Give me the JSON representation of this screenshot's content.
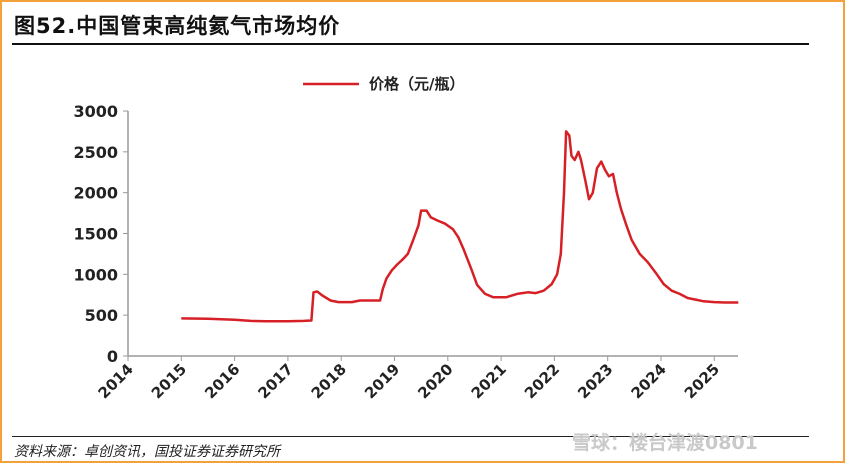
{
  "title": "图52.中国管束高纯氦气市场均价",
  "source": "资料来源：卓创资讯，国投证券证券研究所",
  "watermark": "雪球：楼台津渡0801",
  "colors": {
    "line": "#d62026",
    "frame": "#f2a13b",
    "axis": "#9a9a9a"
  },
  "chart_data": {
    "type": "line",
    "title": "图52.中国管束高纯氦气市场均价",
    "xlabel": "",
    "ylabel": "",
    "x_ticks": [
      "2014",
      "2015",
      "2016",
      "2017",
      "2018",
      "2019",
      "2020",
      "2021",
      "2022",
      "2023",
      "2024",
      "2025"
    ],
    "y_ticks": [
      "0",
      "500",
      "1000",
      "1500",
      "2000",
      "2500",
      "3000"
    ],
    "xlim": [
      2014,
      2025.45
    ],
    "ylim": [
      0,
      3000
    ],
    "legend": {
      "position": "top-center"
    },
    "grid": false,
    "series": [
      {
        "name": "价格（元/瓶）",
        "points": [
          [
            2015.0,
            460
          ],
          [
            2015.5,
            455
          ],
          [
            2016.0,
            445
          ],
          [
            2016.3,
            430
          ],
          [
            2016.6,
            425
          ],
          [
            2017.0,
            425
          ],
          [
            2017.3,
            430
          ],
          [
            2017.44,
            435
          ],
          [
            2017.48,
            780
          ],
          [
            2017.55,
            790
          ],
          [
            2017.65,
            740
          ],
          [
            2017.8,
            680
          ],
          [
            2017.95,
            660
          ],
          [
            2018.2,
            660
          ],
          [
            2018.35,
            680
          ],
          [
            2018.55,
            680
          ],
          [
            2018.73,
            680
          ],
          [
            2018.78,
            820
          ],
          [
            2018.85,
            950
          ],
          [
            2018.95,
            1050
          ],
          [
            2019.05,
            1120
          ],
          [
            2019.15,
            1180
          ],
          [
            2019.25,
            1250
          ],
          [
            2019.35,
            1420
          ],
          [
            2019.45,
            1600
          ],
          [
            2019.5,
            1780
          ],
          [
            2019.6,
            1780
          ],
          [
            2019.68,
            1700
          ],
          [
            2019.8,
            1660
          ],
          [
            2019.95,
            1620
          ],
          [
            2020.1,
            1550
          ],
          [
            2020.2,
            1450
          ],
          [
            2020.3,
            1300
          ],
          [
            2020.45,
            1050
          ],
          [
            2020.55,
            870
          ],
          [
            2020.7,
            760
          ],
          [
            2020.85,
            720
          ],
          [
            2021.1,
            720
          ],
          [
            2021.3,
            760
          ],
          [
            2021.5,
            780
          ],
          [
            2021.65,
            770
          ],
          [
            2021.8,
            800
          ],
          [
            2021.95,
            880
          ],
          [
            2022.05,
            1000
          ],
          [
            2022.12,
            1250
          ],
          [
            2022.18,
            2000
          ],
          [
            2022.22,
            2750
          ],
          [
            2022.28,
            2700
          ],
          [
            2022.32,
            2450
          ],
          [
            2022.38,
            2400
          ],
          [
            2022.45,
            2500
          ],
          [
            2022.5,
            2400
          ],
          [
            2022.58,
            2150
          ],
          [
            2022.65,
            1920
          ],
          [
            2022.72,
            2000
          ],
          [
            2022.8,
            2300
          ],
          [
            2022.88,
            2380
          ],
          [
            2022.95,
            2280
          ],
          [
            2023.02,
            2200
          ],
          [
            2023.1,
            2230
          ],
          [
            2023.17,
            2000
          ],
          [
            2023.25,
            1800
          ],
          [
            2023.35,
            1600
          ],
          [
            2023.45,
            1420
          ],
          [
            2023.6,
            1250
          ],
          [
            2023.75,
            1150
          ],
          [
            2023.9,
            1020
          ],
          [
            2024.05,
            880
          ],
          [
            2024.2,
            800
          ],
          [
            2024.35,
            760
          ],
          [
            2024.5,
            710
          ],
          [
            2024.65,
            690
          ],
          [
            2024.8,
            670
          ],
          [
            2025.0,
            660
          ],
          [
            2025.2,
            655
          ],
          [
            2025.45,
            655
          ]
        ]
      }
    ]
  }
}
